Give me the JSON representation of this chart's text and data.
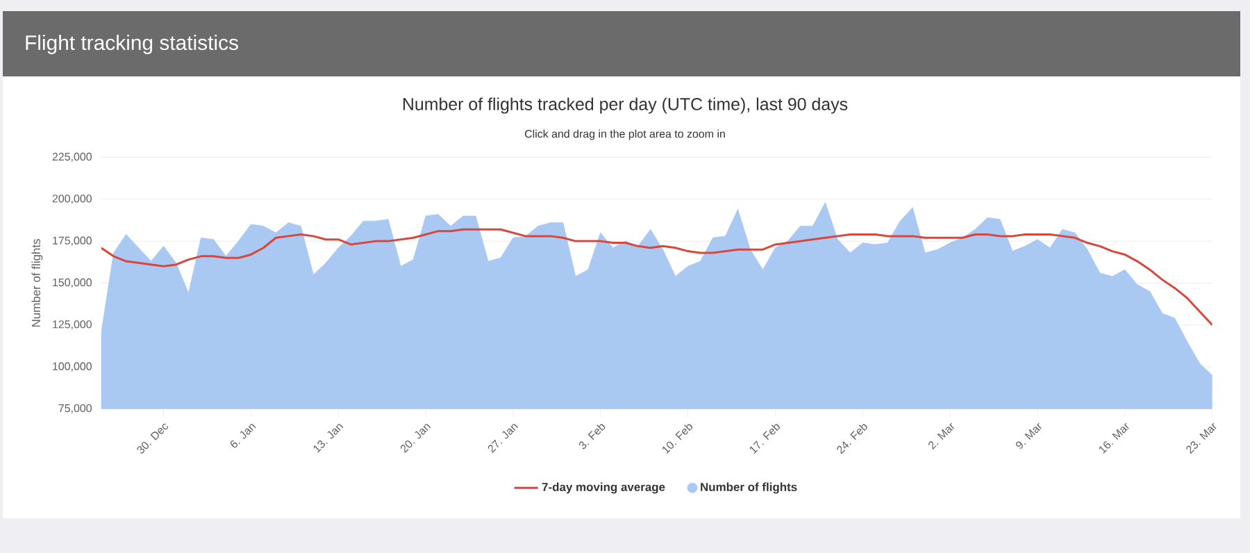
{
  "chart_data": {
    "type": "area",
    "title": "Flight tracking statistics",
    "subtitle": "Number of flights tracked per day (UTC time), last 90 days",
    "annotations": [
      "Click and drag in the plot area to zoom in"
    ],
    "ylabel": "Number of flights",
    "categories": [
      null,
      null,
      null,
      null,
      null,
      "30. Dec",
      null,
      null,
      null,
      null,
      null,
      null,
      "6. Jan",
      null,
      null,
      null,
      null,
      null,
      null,
      "13. Jan",
      null,
      null,
      null,
      null,
      null,
      null,
      "20. Jan",
      null,
      null,
      null,
      null,
      null,
      null,
      "27. Jan",
      null,
      null,
      null,
      null,
      null,
      null,
      "3. Feb",
      null,
      null,
      null,
      null,
      null,
      null,
      "10. Feb",
      null,
      null,
      null,
      null,
      null,
      null,
      "17. Feb",
      null,
      null,
      null,
      null,
      null,
      null,
      "24. Feb",
      null,
      null,
      null,
      null,
      null,
      null,
      "2. Mar",
      null,
      null,
      null,
      null,
      null,
      null,
      "9. Mar",
      null,
      null,
      null,
      null,
      null,
      null,
      "16. Mar",
      null,
      null,
      null,
      null,
      null,
      null,
      "23. Mar"
    ],
    "series": [
      {
        "name": "7-day moving average",
        "type": "line",
        "color": "#d9463c",
        "values": [
          171000,
          166000,
          163000,
          162000,
          161000,
          160000,
          161000,
          164000,
          166000,
          166000,
          165000,
          165000,
          167000,
          171000,
          177000,
          178000,
          179000,
          178000,
          176000,
          176000,
          173000,
          174000,
          175000,
          175000,
          176000,
          177000,
          179000,
          181000,
          181000,
          182000,
          182000,
          182000,
          182000,
          180000,
          178000,
          178000,
          178000,
          177000,
          175000,
          175000,
          175000,
          174000,
          174000,
          172000,
          171000,
          172000,
          171000,
          169000,
          168000,
          168000,
          169000,
          170000,
          170000,
          170000,
          173000,
          174000,
          175000,
          176000,
          177000,
          178000,
          179000,
          179000,
          179000,
          178000,
          178000,
          178000,
          177000,
          177000,
          177000,
          177000,
          179000,
          179000,
          178000,
          178000,
          179000,
          179000,
          179000,
          178000,
          177000,
          174000,
          172000,
          169000,
          167000,
          163000,
          158000,
          152000,
          147000,
          141000,
          133000,
          125000
        ]
      },
      {
        "name": "Number of flights",
        "color": "#a9c9f2",
        "values": [
          120000,
          168000,
          179000,
          171000,
          163000,
          172000,
          162000,
          144000,
          177000,
          176000,
          166000,
          175000,
          185000,
          184000,
          180000,
          186000,
          184000,
          155000,
          162000,
          171000,
          178000,
          187000,
          187000,
          188000,
          160000,
          164000,
          190000,
          191000,
          184000,
          190000,
          190000,
          163000,
          165000,
          177000,
          178000,
          184000,
          186000,
          186000,
          154000,
          158000,
          180000,
          171000,
          175000,
          172000,
          182000,
          170000,
          154000,
          160000,
          163000,
          177000,
          178000,
          194000,
          170000,
          158000,
          171000,
          175000,
          184000,
          184000,
          198000,
          176000,
          168000,
          174000,
          173000,
          174000,
          187000,
          195000,
          168000,
          170000,
          174000,
          177000,
          182000,
          189000,
          188000,
          169000,
          172000,
          176000,
          171000,
          182000,
          180000,
          170000,
          156000,
          154000,
          158000,
          149000,
          145000,
          132000,
          129000,
          115000,
          102000,
          95000
        ]
      }
    ],
    "ylim": [
      75000,
      225000
    ],
    "yticks": [
      {
        "value": 75000,
        "label": "75,000"
      },
      {
        "value": 100000,
        "label": "100,000"
      },
      {
        "value": 125000,
        "label": "125,000"
      },
      {
        "value": 150000,
        "label": "150,000"
      },
      {
        "value": 175000,
        "label": "175,000"
      },
      {
        "value": 200000,
        "label": "200,000"
      },
      {
        "value": 225000,
        "label": "225,000"
      }
    ],
    "grid": "y",
    "legend": "bottom"
  }
}
